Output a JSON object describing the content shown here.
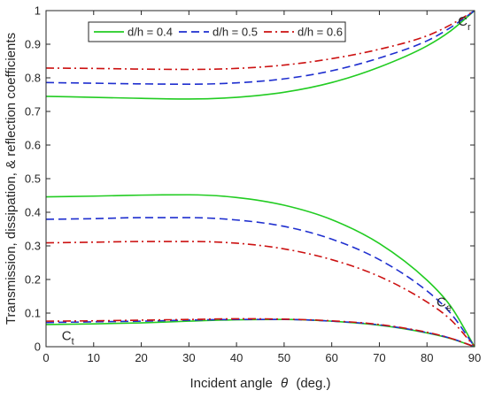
{
  "chart_data": {
    "type": "line",
    "xlabel": "Incident angle",
    "xlabel_symbol": "θ",
    "xlabel_unit": "(deg.)",
    "ylabel": "Transmission, dissipation, & reflection coefficients",
    "xlim": [
      0,
      90
    ],
    "ylim": [
      0,
      1
    ],
    "x_ticks": [
      0,
      10,
      20,
      30,
      40,
      50,
      60,
      70,
      80,
      90
    ],
    "y_ticks": [
      0,
      0.1,
      0.2,
      0.3,
      0.4,
      0.5,
      0.6,
      0.7,
      0.8,
      0.9,
      1
    ],
    "grid": false,
    "legend_position": "top-left",
    "legend": [
      {
        "label": "d/h = 0.4",
        "color": "#22cc22",
        "style": "solid"
      },
      {
        "label": "d/h = 0.5",
        "color": "#1f2fcf",
        "style": "dashed"
      },
      {
        "label": "d/h = 0.6",
        "color": "#cc1111",
        "style": "dashdot"
      }
    ],
    "annotations": [
      {
        "main": "C",
        "sub": "r",
        "x": 86.5,
        "y": 0.955
      },
      {
        "main": "C",
        "sub": "e",
        "x": 82,
        "y": 0.12
      },
      {
        "main": "C",
        "sub": "t",
        "x": 3.3,
        "y": 0.02
      }
    ],
    "x": [
      0,
      10,
      20,
      30,
      40,
      50,
      60,
      70,
      80,
      85,
      90
    ],
    "series": [
      {
        "group": "Cr",
        "legend": 0,
        "values": [
          0.745,
          0.742,
          0.739,
          0.737,
          0.742,
          0.757,
          0.786,
          0.832,
          0.895,
          0.94,
          1.0
        ]
      },
      {
        "group": "Cr",
        "legend": 1,
        "values": [
          0.786,
          0.784,
          0.782,
          0.781,
          0.785,
          0.797,
          0.821,
          0.859,
          0.91,
          0.95,
          1.0
        ]
      },
      {
        "group": "Cr",
        "legend": 2,
        "values": [
          0.829,
          0.828,
          0.826,
          0.825,
          0.828,
          0.838,
          0.857,
          0.885,
          0.925,
          0.958,
          1.0
        ]
      },
      {
        "group": "Ce",
        "legend": 0,
        "values": [
          0.446,
          0.448,
          0.451,
          0.452,
          0.444,
          0.421,
          0.378,
          0.307,
          0.198,
          0.12,
          0.0
        ]
      },
      {
        "group": "Ce",
        "legend": 1,
        "values": [
          0.379,
          0.381,
          0.384,
          0.384,
          0.377,
          0.358,
          0.32,
          0.259,
          0.166,
          0.099,
          0.0
        ]
      },
      {
        "group": "Ce",
        "legend": 2,
        "values": [
          0.309,
          0.311,
          0.313,
          0.313,
          0.308,
          0.291,
          0.259,
          0.209,
          0.133,
          0.08,
          0.0
        ]
      },
      {
        "group": "Ct",
        "legend": 0,
        "values": [
          0.066,
          0.068,
          0.071,
          0.076,
          0.08,
          0.081,
          0.076,
          0.064,
          0.041,
          0.024,
          0.0
        ]
      },
      {
        "group": "Ct",
        "legend": 1,
        "values": [
          0.072,
          0.074,
          0.076,
          0.079,
          0.081,
          0.081,
          0.076,
          0.065,
          0.042,
          0.025,
          0.0
        ]
      },
      {
        "group": "Ct",
        "legend": 2,
        "values": [
          0.076,
          0.077,
          0.079,
          0.081,
          0.083,
          0.082,
          0.077,
          0.066,
          0.043,
          0.025,
          0.0
        ]
      }
    ]
  }
}
